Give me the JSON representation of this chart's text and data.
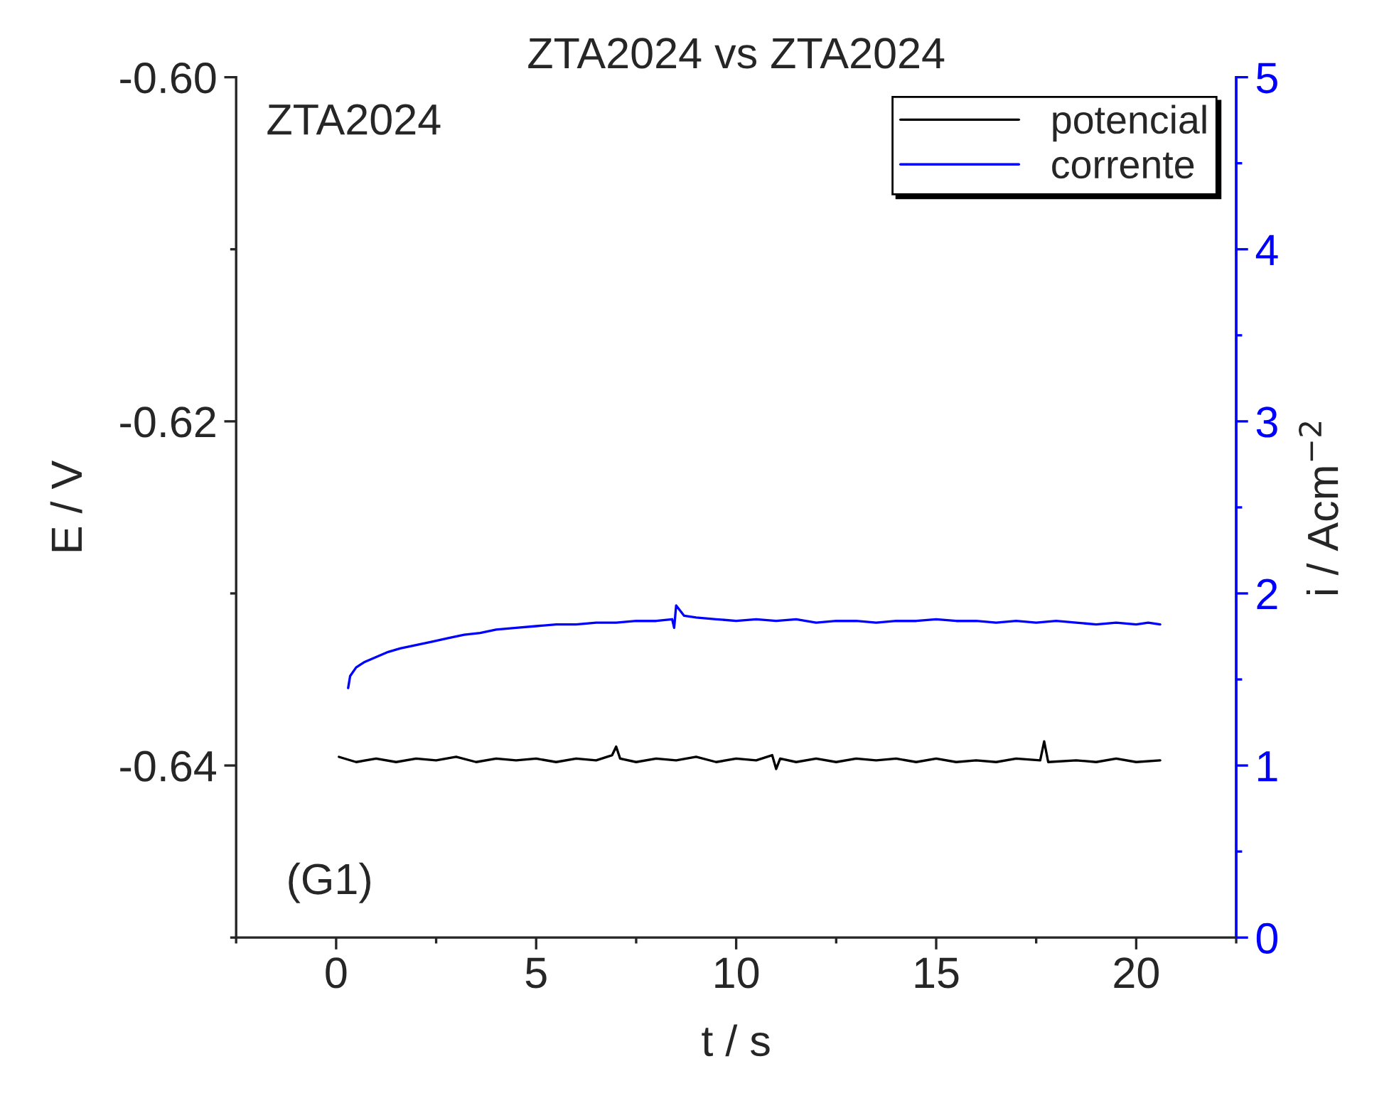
{
  "chart_data": {
    "type": "line",
    "title": "ZTA2024 vs ZTA2024",
    "xlabel": "t / s",
    "ylabel": "E / V",
    "y2label": "i / Acm$^{−2}$",
    "annotations": [
      "ZTA2024",
      "(G1)"
    ],
    "xlim": [
      -2.5,
      22.5
    ],
    "xticks": [
      {
        "value": -2.5,
        "label": null
      },
      0,
      {
        "value": 2.5,
        "label": null
      },
      5,
      {
        "value": 7.5,
        "label": null
      },
      10,
      {
        "value": 12.5,
        "label": null
      },
      15,
      {
        "value": 17.5,
        "label": null
      },
      20,
      {
        "value": 22.5,
        "label": null
      }
    ],
    "ylim": [
      -0.65,
      -0.6
    ],
    "yticks": [
      {
        "value": -0.65,
        "label": null
      },
      {
        "value": -0.64,
        "label": "-0.64"
      },
      {
        "value": -0.63,
        "label": null
      },
      {
        "value": -0.62,
        "label": "-0.62"
      },
      {
        "value": -0.61,
        "label": null
      },
      {
        "value": -0.6,
        "label": "-0.60"
      }
    ],
    "y2lim": [
      0,
      5
    ],
    "y2ticks": [
      0,
      {
        "value": 0.5,
        "label": null
      },
      1,
      {
        "value": 1.5,
        "label": null
      },
      2,
      {
        "value": 2.5,
        "label": null
      },
      3,
      {
        "value": 3.5,
        "label": null
      },
      4,
      {
        "value": 4.5,
        "label": null
      },
      5
    ],
    "legend": "top right",
    "grid": false,
    "series": [
      {
        "name": "potencial",
        "color": "#000000",
        "x": [
          0.07,
          0.5,
          1.0,
          1.5,
          2.0,
          2.5,
          3.0,
          3.5,
          4.0,
          4.5,
          5.0,
          5.5,
          6.0,
          6.5,
          6.9,
          7.0,
          7.1,
          7.5,
          8.0,
          8.5,
          9.0,
          9.5,
          10.0,
          10.5,
          10.9,
          11.0,
          11.1,
          11.5,
          12.0,
          12.5,
          13.0,
          13.5,
          14.0,
          14.5,
          15.0,
          15.5,
          16.0,
          16.5,
          17.0,
          17.6,
          17.7,
          17.8,
          18.5,
          19.0,
          19.5,
          20.0,
          20.6
        ],
        "values": [
          -0.6395,
          -0.6398,
          -0.6396,
          -0.6398,
          -0.6396,
          -0.6397,
          -0.6395,
          -0.6398,
          -0.6396,
          -0.6397,
          -0.6396,
          -0.6398,
          -0.6396,
          -0.6397,
          -0.6394,
          -0.6389,
          -0.6396,
          -0.6398,
          -0.6396,
          -0.6397,
          -0.6395,
          -0.6398,
          -0.6396,
          -0.6397,
          -0.6394,
          -0.6402,
          -0.6396,
          -0.6398,
          -0.6396,
          -0.6398,
          -0.6396,
          -0.6397,
          -0.6396,
          -0.6398,
          -0.6396,
          -0.6398,
          -0.6397,
          -0.6398,
          -0.6396,
          -0.6397,
          -0.6386,
          -0.6398,
          -0.6397,
          -0.6398,
          -0.6396,
          -0.6398,
          -0.6397
        ]
      },
      {
        "name": "corrente",
        "color": "#0000ff",
        "axis": "y2",
        "x": [
          0.3,
          0.35,
          0.5,
          0.7,
          1.0,
          1.3,
          1.6,
          2.0,
          2.4,
          2.8,
          3.2,
          3.6,
          4.0,
          4.5,
          5.0,
          5.5,
          6.0,
          6.5,
          7.0,
          7.5,
          8.0,
          8.4,
          8.45,
          8.5,
          8.7,
          9.0,
          9.5,
          10.0,
          10.5,
          11.0,
          11.5,
          12.0,
          12.5,
          13.0,
          13.5,
          14.0,
          14.5,
          15.0,
          15.5,
          16.0,
          16.5,
          17.0,
          17.5,
          18.0,
          18.5,
          19.0,
          19.5,
          20.0,
          20.3,
          20.6
        ],
        "values": [
          1.45,
          1.52,
          1.57,
          1.6,
          1.63,
          1.66,
          1.68,
          1.7,
          1.72,
          1.74,
          1.76,
          1.77,
          1.79,
          1.8,
          1.81,
          1.82,
          1.82,
          1.83,
          1.83,
          1.84,
          1.84,
          1.85,
          1.8,
          1.93,
          1.87,
          1.86,
          1.85,
          1.84,
          1.85,
          1.84,
          1.85,
          1.83,
          1.84,
          1.84,
          1.83,
          1.84,
          1.84,
          1.85,
          1.84,
          1.84,
          1.83,
          1.84,
          1.83,
          1.84,
          1.83,
          1.82,
          1.83,
          1.82,
          1.83,
          1.82
        ]
      }
    ]
  }
}
